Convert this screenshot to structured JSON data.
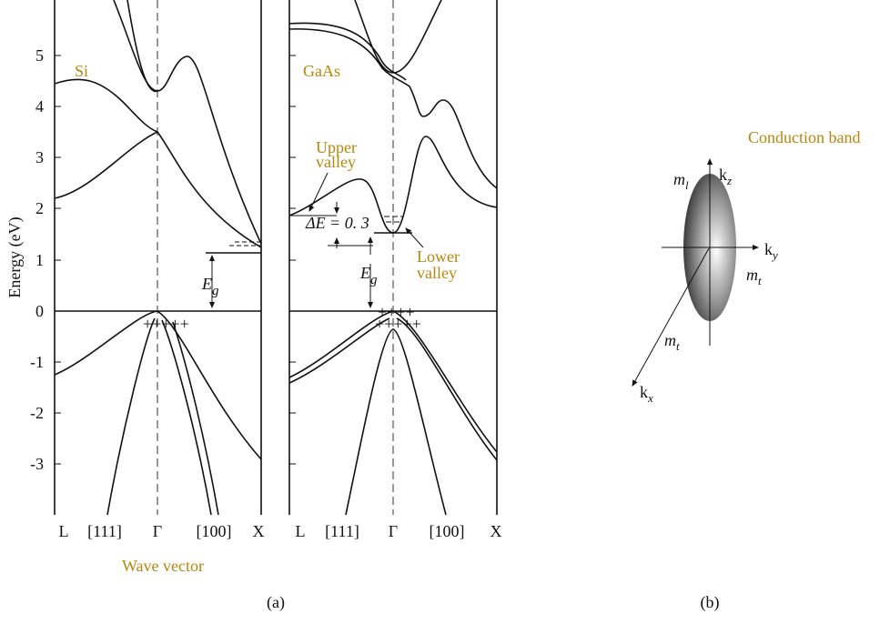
{
  "figure_a": {
    "y_axis_label": "Energy (eV)",
    "y_ticks": [
      "5",
      "4",
      "3",
      "2",
      "1",
      "0",
      "-1",
      "-2",
      "-3"
    ],
    "x_ticks": [
      "L",
      "[111]",
      "Γ",
      "[100]",
      "X"
    ],
    "x_axis_label": "Wave vector",
    "caption": "(a)",
    "si": {
      "name": "Si",
      "eg_main": "E",
      "eg_sub": "g"
    },
    "gaas": {
      "name": "GaAs",
      "eg_main": "E",
      "eg_sub": "g",
      "delta_e": "ΔE = 0. 3",
      "upper_valley": [
        "Upper",
        "valley"
      ],
      "lower_valley": [
        "Lower",
        "valley"
      ]
    }
  },
  "figure_b": {
    "title": "Conduction band",
    "caption": "(b)",
    "m_l": {
      "main": "m",
      "sub": "l"
    },
    "k_z": {
      "main": "k",
      "sub": "z"
    },
    "k_y": {
      "main": "k",
      "sub": "y"
    },
    "m_t_right": {
      "main": "m",
      "sub": "t"
    },
    "m_t_axis": {
      "main": "m",
      "sub": "t"
    },
    "k_x": {
      "main": "k",
      "sub": "x"
    }
  },
  "colors": {
    "label_gold": "#b8860b",
    "line": "#111111"
  }
}
